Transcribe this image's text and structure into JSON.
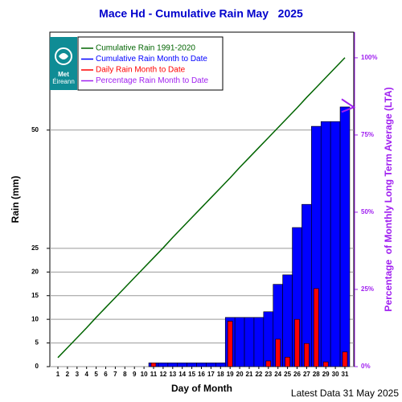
{
  "chart_data": {
    "type": "bar",
    "title": "Mace Hd - Cumulative Rain May   2025",
    "x_label": "Day of Month",
    "y_label": "Rain (mm)",
    "y2_label": "Percentage  of Monthly Long Term Average (LTA)",
    "footer": "Latest Data 31 May 2025",
    "logo": [
      "Met",
      "Éireann"
    ],
    "categories": [
      1,
      2,
      3,
      4,
      5,
      6,
      7,
      8,
      9,
      10,
      11,
      12,
      13,
      14,
      15,
      16,
      17,
      18,
      19,
      20,
      21,
      22,
      23,
      24,
      25,
      26,
      27,
      28,
      29,
      30,
      31
    ],
    "series": [
      {
        "name": "Cumulative Rain 1991-2020",
        "type": "line",
        "color": "#006400",
        "values": [
          1.9,
          4.0,
          6.1,
          8.2,
          10.4,
          12.5,
          14.6,
          16.7,
          18.8,
          20.9,
          23.0,
          25.1,
          27.3,
          29.4,
          31.5,
          33.6,
          35.7,
          37.8,
          39.9,
          42.1,
          44.2,
          46.3,
          48.4,
          50.5,
          52.6,
          54.7,
          56.9,
          59.0,
          61.1,
          63.2,
          65.3
        ]
      },
      {
        "name": "Cumulative Rain Month to Date",
        "type": "bar",
        "color": "#0000ff",
        "values": [
          0,
          0,
          0,
          0,
          0,
          0,
          0,
          0,
          0,
          0,
          0.8,
          0.8,
          0.8,
          0.8,
          0.8,
          0.8,
          0.8,
          0.8,
          10.4,
          10.4,
          10.4,
          10.4,
          11.6,
          17.4,
          19.4,
          29.4,
          34.3,
          50.8,
          51.8,
          51.8,
          54.9
        ]
      },
      {
        "name": "Daily Rain Month to Date",
        "type": "bar",
        "color": "#ff0000",
        "values": [
          0,
          0,
          0,
          0,
          0,
          0,
          0,
          0,
          0,
          0,
          0.8,
          0,
          0,
          0,
          0,
          0,
          0,
          0,
          9.6,
          0,
          0,
          0,
          1.2,
          5.8,
          2.0,
          10.0,
          4.9,
          16.5,
          1.0,
          0,
          3.1
        ]
      },
      {
        "name": "Percentage Rain Month to Date",
        "type": "marker",
        "color": "#a020f0",
        "axis": "y2",
        "values": [
          null,
          null,
          null,
          null,
          null,
          null,
          null,
          null,
          null,
          null,
          null,
          null,
          null,
          null,
          null,
          null,
          null,
          null,
          null,
          null,
          null,
          null,
          null,
          null,
          null,
          null,
          null,
          null,
          null,
          null,
          84
        ]
      }
    ],
    "ylim": [
      0,
      70.7
    ],
    "yticks": [
      0,
      5,
      10,
      15,
      20,
      25,
      50
    ],
    "y2lim": [
      0,
      108.3
    ],
    "y2ticks": [
      {
        "value": 0,
        "label": "0%"
      },
      {
        "value": 25,
        "label": "25%"
      },
      {
        "value": 50,
        "label": "50%"
      },
      {
        "value": 75,
        "label": "75%"
      },
      {
        "value": 100,
        "label": "100%"
      }
    ],
    "grid": true,
    "legend": "upper left"
  }
}
